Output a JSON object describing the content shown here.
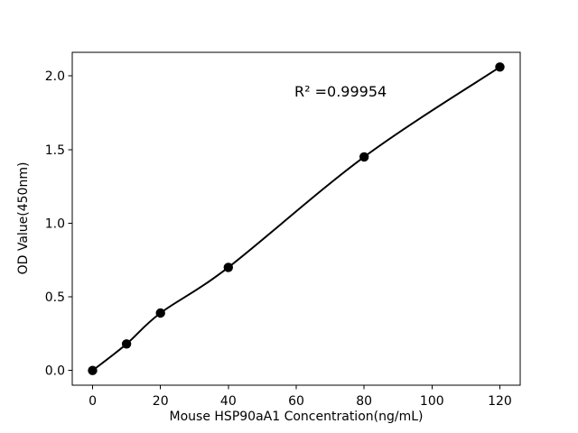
{
  "chart_data": {
    "type": "scatter",
    "title": "",
    "xlabel": "Mouse HSP90aA1 Concentration(ng/mL)",
    "ylabel": "OD Value(450nm)",
    "annotation": "R² =0.99954",
    "x": [
      0,
      10,
      20,
      40,
      80,
      120
    ],
    "y": [
      0.0,
      0.18,
      0.39,
      0.7,
      1.45,
      2.06
    ],
    "fit_line": true,
    "xticks": [
      0,
      20,
      40,
      60,
      80,
      100,
      120
    ],
    "yticks": [
      "0.0",
      "0.5",
      "1.0",
      "1.5",
      "2.0"
    ],
    "xlim": [
      -6,
      126
    ],
    "ylim": [
      -0.1,
      2.16
    ],
    "grid": false,
    "legend": null,
    "marker_color": "#000000",
    "line_color": "#000000",
    "text_color": "#000000",
    "background": "#ffffff"
  }
}
